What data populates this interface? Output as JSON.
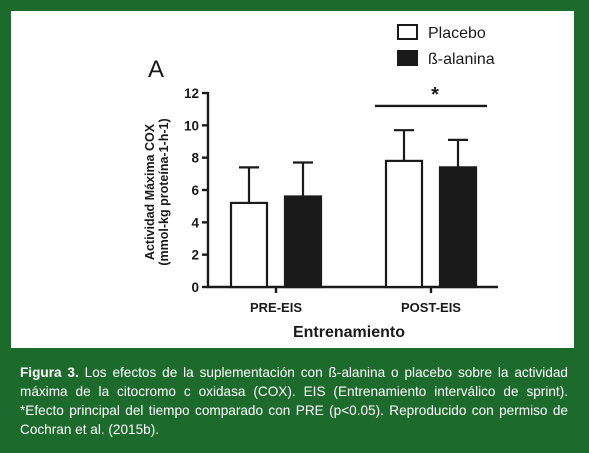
{
  "chart_data": {
    "type": "bar",
    "panel_label": "A",
    "ylabel_line1": "Actividad Máxima COX",
    "ylabel_line2": "(mmol-kg proteína-1-h-1)",
    "xlabel": "Entrenamiento",
    "categories": [
      "PRE-EIS",
      "POST-EIS"
    ],
    "ylim": [
      0,
      12
    ],
    "yticks": [
      "0",
      "2",
      "4",
      "6",
      "8",
      "10",
      "12"
    ],
    "series": [
      {
        "name": "Placebo",
        "values": [
          5.2,
          7.8
        ],
        "errors": [
          2.2,
          1.9
        ],
        "color": "#ffffff"
      },
      {
        "name": "ß-alanina",
        "values": [
          5.6,
          7.4
        ],
        "errors": [
          2.1,
          1.7
        ],
        "color": "#1a1a1a"
      }
    ],
    "significance": {
      "label": "*",
      "category": "POST-EIS"
    },
    "legend_position": "top-right",
    "grid": false
  },
  "caption": {
    "label": "Figura 3.",
    "text": " Los efectos de la suplementación con ß-alanina o placebo sobre la actividad máxima de la citocromo c oxidasa (COX). EIS (Entrenamiento interválico de sprint). *Efecto principal del tiempo comparado con PRE (p<0.05). Reproducido con permiso de Cochran et al. (2015b)."
  },
  "colors": {
    "background": "#1d6b2c",
    "panel": "#ffffff",
    "ink": "#1a1a1a"
  }
}
